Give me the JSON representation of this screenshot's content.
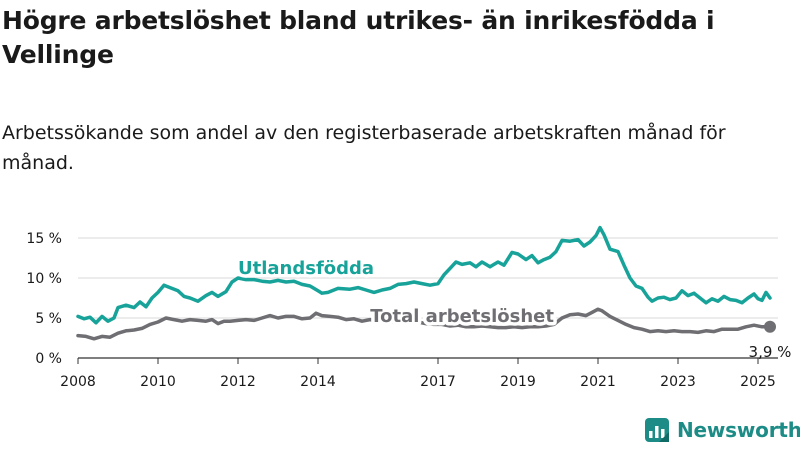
{
  "title": "Högre arbetslöshet bland utrikes- än inrikesfödda i Vellinge",
  "subtitle": "Arbetssökande som andel av den registerbaserade arbetskraften månad för månad.",
  "brand": {
    "name": "Newsworthy",
    "color": "#1d8c86",
    "icon": "bar-chart-logo-icon"
  },
  "chart_data": {
    "type": "line",
    "x_ticks": [
      "2008",
      "2010",
      "2012",
      "2014",
      "2017",
      "2019",
      "2021",
      "2023",
      "2025"
    ],
    "y_ticks": [
      "0 %",
      "5 %",
      "10 %",
      "15 %"
    ],
    "ylim": [
      0,
      15
    ],
    "xlim": [
      2008,
      2025.5
    ],
    "grid": true,
    "series": [
      {
        "name": "Utlandsfödda",
        "color": "#17a399",
        "label_color": "#17a399",
        "points": [
          [
            2008.0,
            5.2
          ],
          [
            2008.15,
            4.9
          ],
          [
            2008.3,
            5.1
          ],
          [
            2008.45,
            4.4
          ],
          [
            2008.6,
            5.2
          ],
          [
            2008.75,
            4.6
          ],
          [
            2008.9,
            5.0
          ],
          [
            2009.0,
            6.3
          ],
          [
            2009.2,
            6.6
          ],
          [
            2009.4,
            6.3
          ],
          [
            2009.55,
            7.0
          ],
          [
            2009.7,
            6.4
          ],
          [
            2009.85,
            7.5
          ],
          [
            2010.0,
            8.2
          ],
          [
            2010.15,
            9.1
          ],
          [
            2010.3,
            8.8
          ],
          [
            2010.5,
            8.4
          ],
          [
            2010.65,
            7.7
          ],
          [
            2010.8,
            7.5
          ],
          [
            2011.0,
            7.1
          ],
          [
            2011.2,
            7.8
          ],
          [
            2011.35,
            8.2
          ],
          [
            2011.5,
            7.7
          ],
          [
            2011.7,
            8.3
          ],
          [
            2011.85,
            9.5
          ],
          [
            2012.0,
            10.0
          ],
          [
            2012.2,
            9.8
          ],
          [
            2012.4,
            9.8
          ],
          [
            2012.6,
            9.6
          ],
          [
            2012.8,
            9.5
          ],
          [
            2013.0,
            9.7
          ],
          [
            2013.2,
            9.5
          ],
          [
            2013.4,
            9.6
          ],
          [
            2013.6,
            9.2
          ],
          [
            2013.8,
            9.0
          ],
          [
            2014.0,
            8.4
          ],
          [
            2014.1,
            8.1
          ],
          [
            2014.25,
            8.2
          ],
          [
            2014.5,
            8.7
          ],
          [
            2014.8,
            8.6
          ],
          [
            2015.0,
            8.8
          ],
          [
            2015.2,
            8.5
          ],
          [
            2015.4,
            8.2
          ],
          [
            2015.6,
            8.5
          ],
          [
            2015.8,
            8.7
          ],
          [
            2016.0,
            9.2
          ],
          [
            2016.2,
            9.3
          ],
          [
            2016.4,
            9.5
          ],
          [
            2016.6,
            9.3
          ],
          [
            2016.8,
            9.1
          ],
          [
            2017.0,
            9.3
          ],
          [
            2017.15,
            10.4
          ],
          [
            2017.3,
            11.2
          ],
          [
            2017.45,
            12.0
          ],
          [
            2017.6,
            11.7
          ],
          [
            2017.8,
            11.9
          ],
          [
            2017.95,
            11.4
          ],
          [
            2018.1,
            12.0
          ],
          [
            2018.3,
            11.4
          ],
          [
            2018.5,
            12.0
          ],
          [
            2018.65,
            11.6
          ],
          [
            2018.85,
            13.2
          ],
          [
            2019.0,
            13.0
          ],
          [
            2019.2,
            12.3
          ],
          [
            2019.35,
            12.8
          ],
          [
            2019.5,
            11.9
          ],
          [
            2019.65,
            12.3
          ],
          [
            2019.8,
            12.6
          ],
          [
            2019.95,
            13.3
          ],
          [
            2020.1,
            14.7
          ],
          [
            2020.3,
            14.6
          ],
          [
            2020.5,
            14.8
          ],
          [
            2020.65,
            14.0
          ],
          [
            2020.8,
            14.5
          ],
          [
            2020.95,
            15.3
          ],
          [
            2021.05,
            16.3
          ],
          [
            2021.15,
            15.4
          ],
          [
            2021.3,
            13.6
          ],
          [
            2021.5,
            13.3
          ],
          [
            2021.65,
            11.6
          ],
          [
            2021.8,
            10.0
          ],
          [
            2021.95,
            9.0
          ],
          [
            2022.1,
            8.7
          ],
          [
            2022.25,
            7.6
          ],
          [
            2022.35,
            7.1
          ],
          [
            2022.5,
            7.5
          ],
          [
            2022.65,
            7.6
          ],
          [
            2022.8,
            7.3
          ],
          [
            2022.95,
            7.5
          ],
          [
            2023.1,
            8.4
          ],
          [
            2023.25,
            7.8
          ],
          [
            2023.4,
            8.1
          ],
          [
            2023.55,
            7.5
          ],
          [
            2023.7,
            6.9
          ],
          [
            2023.85,
            7.4
          ],
          [
            2024.0,
            7.1
          ],
          [
            2024.15,
            7.7
          ],
          [
            2024.3,
            7.3
          ],
          [
            2024.45,
            7.2
          ],
          [
            2024.6,
            6.9
          ],
          [
            2024.75,
            7.5
          ],
          [
            2024.9,
            8.0
          ],
          [
            2025.0,
            7.4
          ],
          [
            2025.1,
            7.2
          ],
          [
            2025.2,
            8.2
          ],
          [
            2025.3,
            7.5
          ]
        ]
      },
      {
        "name": "Total arbetslöshet",
        "color": "#6e6e73",
        "label_color": "#6e6e73",
        "points": [
          [
            2008.0,
            2.8
          ],
          [
            2008.2,
            2.7
          ],
          [
            2008.4,
            2.4
          ],
          [
            2008.6,
            2.7
          ],
          [
            2008.8,
            2.6
          ],
          [
            2009.0,
            3.1
          ],
          [
            2009.2,
            3.4
          ],
          [
            2009.4,
            3.5
          ],
          [
            2009.6,
            3.7
          ],
          [
            2009.8,
            4.2
          ],
          [
            2010.0,
            4.5
          ],
          [
            2010.2,
            5.0
          ],
          [
            2010.4,
            4.8
          ],
          [
            2010.6,
            4.6
          ],
          [
            2010.8,
            4.8
          ],
          [
            2011.0,
            4.7
          ],
          [
            2011.2,
            4.6
          ],
          [
            2011.35,
            4.8
          ],
          [
            2011.5,
            4.3
          ],
          [
            2011.65,
            4.6
          ],
          [
            2011.8,
            4.6
          ],
          [
            2012.0,
            4.7
          ],
          [
            2012.2,
            4.8
          ],
          [
            2012.4,
            4.7
          ],
          [
            2012.6,
            5.0
          ],
          [
            2012.8,
            5.3
          ],
          [
            2013.0,
            5.0
          ],
          [
            2013.2,
            5.2
          ],
          [
            2013.4,
            5.2
          ],
          [
            2013.6,
            4.9
          ],
          [
            2013.8,
            5.0
          ],
          [
            2013.95,
            5.6
          ],
          [
            2014.1,
            5.3
          ],
          [
            2014.3,
            5.2
          ],
          [
            2014.5,
            5.1
          ],
          [
            2014.7,
            4.8
          ],
          [
            2014.9,
            4.9
          ],
          [
            2015.1,
            4.6
          ],
          [
            2015.3,
            4.8
          ],
          [
            2015.5,
            4.6
          ],
          [
            2015.7,
            4.6
          ],
          [
            2015.9,
            4.5
          ],
          [
            2016.1,
            4.7
          ],
          [
            2016.3,
            4.4
          ],
          [
            2016.5,
            4.5
          ],
          [
            2016.7,
            4.3
          ],
          [
            2016.9,
            4.2
          ],
          [
            2017.1,
            4.2
          ],
          [
            2017.3,
            4.0
          ],
          [
            2017.5,
            4.1
          ],
          [
            2017.7,
            3.9
          ],
          [
            2017.9,
            3.9
          ],
          [
            2018.1,
            4.0
          ],
          [
            2018.3,
            3.9
          ],
          [
            2018.5,
            3.8
          ],
          [
            2018.7,
            3.8
          ],
          [
            2018.9,
            3.9
          ],
          [
            2019.1,
            3.8
          ],
          [
            2019.3,
            3.9
          ],
          [
            2019.5,
            3.9
          ],
          [
            2019.7,
            4.0
          ],
          [
            2019.9,
            4.2
          ],
          [
            2020.1,
            5.0
          ],
          [
            2020.3,
            5.4
          ],
          [
            2020.5,
            5.5
          ],
          [
            2020.7,
            5.3
          ],
          [
            2020.85,
            5.7
          ],
          [
            2021.0,
            6.1
          ],
          [
            2021.1,
            5.9
          ],
          [
            2021.3,
            5.2
          ],
          [
            2021.5,
            4.7
          ],
          [
            2021.7,
            4.2
          ],
          [
            2021.9,
            3.8
          ],
          [
            2022.1,
            3.6
          ],
          [
            2022.3,
            3.3
          ],
          [
            2022.5,
            3.4
          ],
          [
            2022.7,
            3.3
          ],
          [
            2022.9,
            3.4
          ],
          [
            2023.1,
            3.3
          ],
          [
            2023.3,
            3.3
          ],
          [
            2023.5,
            3.2
          ],
          [
            2023.7,
            3.4
          ],
          [
            2023.9,
            3.3
          ],
          [
            2024.1,
            3.6
          ],
          [
            2024.3,
            3.6
          ],
          [
            2024.5,
            3.6
          ],
          [
            2024.7,
            3.9
          ],
          [
            2024.9,
            4.1
          ],
          [
            2025.1,
            3.9
          ],
          [
            2025.3,
            3.9
          ]
        ]
      }
    ],
    "end_label": "3,9 %"
  }
}
